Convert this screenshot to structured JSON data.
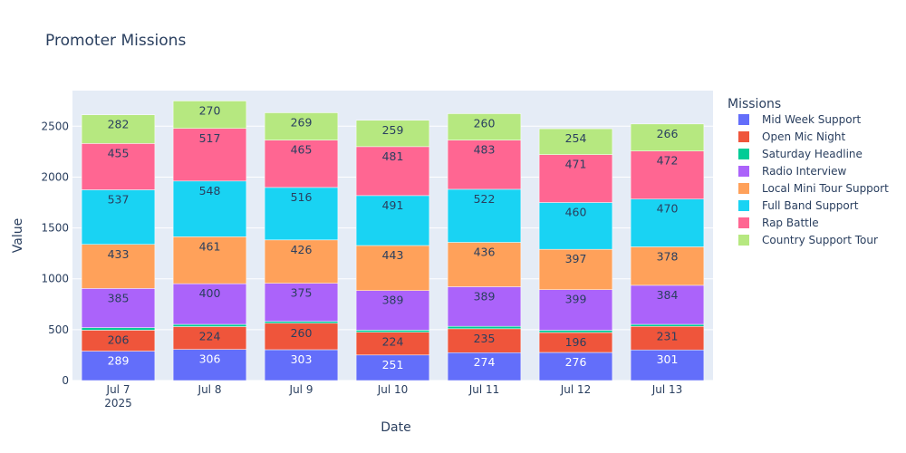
{
  "chart_data": {
    "type": "bar",
    "stacked": true,
    "title": "Promoter Missions",
    "xlabel": "Date",
    "ylabel": "Value",
    "ylim": [
      0,
      2850
    ],
    "yticks": [
      0,
      500,
      1000,
      1500,
      2000,
      2500
    ],
    "ytick_labels": [
      "0",
      "500",
      "1000",
      "1500",
      "2000",
      "2500"
    ],
    "categories": [
      "Jul 7",
      "Jul 8",
      "Jul 9",
      "Jul 10",
      "Jul 11",
      "Jul 12",
      "Jul 13"
    ],
    "category_sublabels": [
      "2025",
      "",
      "",
      "",
      "",
      "",
      ""
    ],
    "grid": true,
    "legend_title": "Missions",
    "legend_position": "right",
    "series": [
      {
        "name": "Mid Week Support",
        "color": "#636efa",
        "values": [
          289,
          306,
          303,
          251,
          274,
          276,
          301
        ],
        "labels": [
          "289",
          "306",
          "303",
          "251",
          "274",
          "276",
          "301"
        ],
        "label_color": "#ffffff"
      },
      {
        "name": "Open Mic Night",
        "color": "#ef553b",
        "values": [
          206,
          224,
          260,
          224,
          235,
          196,
          231
        ],
        "labels": [
          "206",
          "224",
          "260",
          "224",
          "235",
          "196",
          "231"
        ],
        "label_color": "#2a3f5f"
      },
      {
        "name": "Saturday Headline",
        "color": "#00cc96",
        "values": [
          25,
          22,
          18,
          20,
          24,
          22,
          20
        ],
        "labels": [],
        "label_color": "#2a3f5f"
      },
      {
        "name": "Radio Interview",
        "color": "#ab63fa",
        "values": [
          385,
          400,
          375,
          389,
          389,
          399,
          384
        ],
        "labels": [
          "385",
          "400",
          "375",
          "389",
          "389",
          "399",
          "384"
        ],
        "label_color": "#2a3f5f"
      },
      {
        "name": "Local Mini Tour Support",
        "color": "#ffa15a",
        "values": [
          433,
          461,
          426,
          443,
          436,
          397,
          378
        ],
        "labels": [
          "433",
          "461",
          "426",
          "443",
          "436",
          "397",
          "378"
        ],
        "label_color": "#2a3f5f"
      },
      {
        "name": "Full Band Support",
        "color": "#19d3f3",
        "values": [
          537,
          548,
          516,
          491,
          522,
          460,
          470
        ],
        "labels": [
          "537",
          "548",
          "516",
          "491",
          "522",
          "460",
          "470"
        ],
        "label_color": "#2a3f5f"
      },
      {
        "name": "Rap Battle",
        "color": "#ff6692",
        "values": [
          455,
          517,
          465,
          481,
          483,
          471,
          472
        ],
        "labels": [
          "455",
          "517",
          "465",
          "481",
          "483",
          "471",
          "472"
        ],
        "label_color": "#2a3f5f"
      },
      {
        "name": "Country Support Tour",
        "color": "#b6e880",
        "values": [
          282,
          270,
          269,
          259,
          260,
          254,
          266
        ],
        "labels": [
          "282",
          "270",
          "269",
          "259",
          "260",
          "254",
          "266"
        ],
        "label_color": "#2a3f5f"
      }
    ],
    "colors": {
      "plot_bg": "#e5ecf6",
      "grid": "#ffffff",
      "text": "#2a3f5f"
    }
  }
}
